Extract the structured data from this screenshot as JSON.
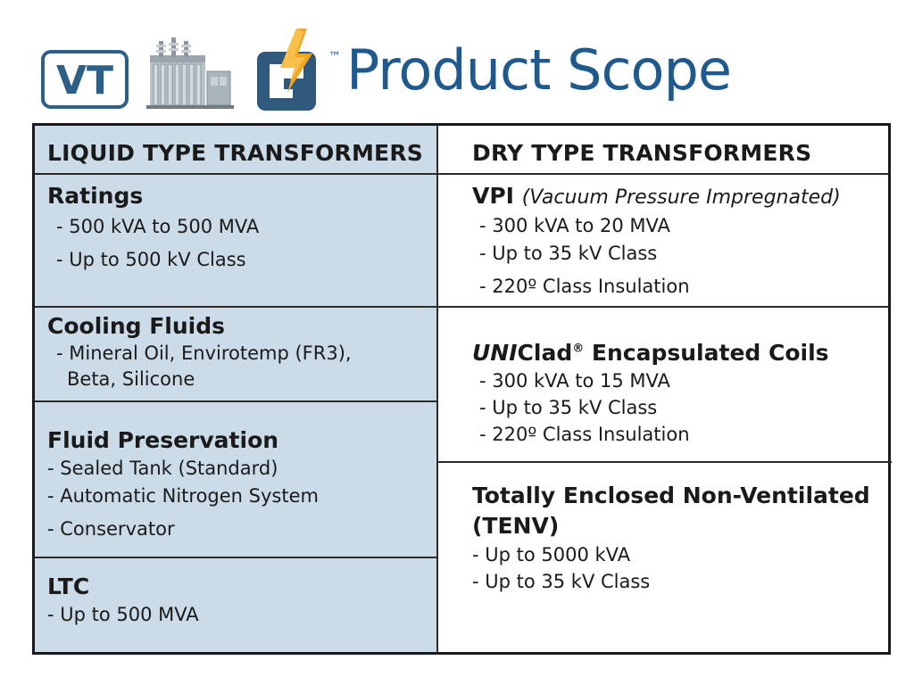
{
  "header": {
    "logo_text": "VT",
    "trademark": "™",
    "title": "Product Scope"
  },
  "left": {
    "heading": "LIQUID TYPE TRANSFORMERS",
    "sections": [
      {
        "title": "Ratings",
        "items": [
          "- 500 kVA to 500 MVA",
          "- Up to 500 kV Class"
        ]
      },
      {
        "title": "Cooling Fluids",
        "items": [
          "- Mineral Oil, Envirotemp (FR3),",
          "Beta, Silicone"
        ]
      },
      {
        "title": "Fluid Preservation",
        "items": [
          "- Sealed Tank (Standard)",
          "- Automatic Nitrogen System",
          "- Conservator"
        ]
      },
      {
        "title": "LTC",
        "items": [
          "- Up to 500 MVA"
        ]
      }
    ]
  },
  "right": {
    "heading": "DRY TYPE TRANSFORMERS",
    "vpi": {
      "title": "VPI",
      "subtitle": "(Vacuum Pressure Impregnated)",
      "items": [
        "- 300 kVA to 20 MVA",
        "- Up to 35 kV Class",
        "- 220º Class Insulation"
      ]
    },
    "uniclad": {
      "title_italic": "UNI",
      "title_rest": "Clad",
      "registered": "®",
      "title_tail": " Encapsulated Coils",
      "items": [
        "- 300 kVA to 15 MVA",
        "- Up to 35 kV Class",
        "- 220º Class Insulation"
      ]
    },
    "tenv": {
      "title_line1": "Totally Enclosed Non-Ventilated",
      "title_line2": "(TENV)",
      "items": [
        "- Up to 5000 kVA",
        "- Up to 35 kV Class"
      ]
    }
  }
}
